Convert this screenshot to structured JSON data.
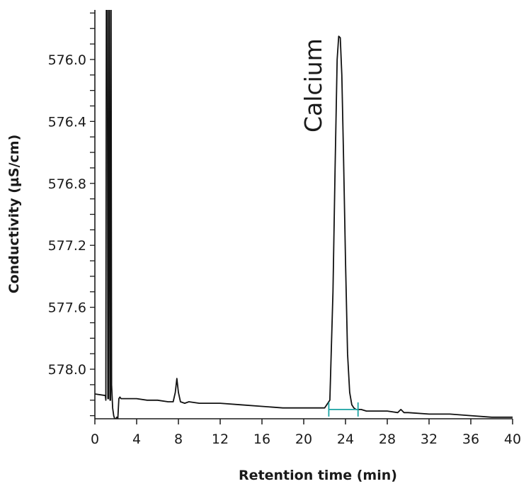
{
  "chart_data": {
    "type": "line",
    "title": "",
    "xlabel": "Retention time (min)",
    "ylabel": "Conductivity (µS/cm)",
    "xlim": [
      0,
      40
    ],
    "ylim": [
      575.68,
      578.32
    ],
    "y_inverted": true,
    "grid": false,
    "legend": "none",
    "x_ticks": [
      0,
      4,
      8,
      12,
      16,
      20,
      24,
      28,
      32,
      36,
      40
    ],
    "x_tick_labels": [
      "0",
      "4",
      "8",
      "12",
      "16",
      "20",
      "24",
      "28",
      "32",
      "36",
      "40"
    ],
    "y_ticks": [
      576.0,
      576.4,
      576.8,
      577.2,
      577.6,
      578.0
    ],
    "y_tick_labels": [
      "576.0",
      "576.4",
      "576.8",
      "577.2",
      "577.6",
      "578.0"
    ],
    "y_minor_step": 0.1,
    "line_color": "#111111",
    "series": [
      {
        "x": [
          0,
          1.0,
          1.05,
          1.1,
          1.2,
          1.25,
          1.3,
          1.35,
          1.4,
          1.45,
          1.5,
          1.55,
          1.6,
          1.7,
          1.8,
          1.9,
          2.0,
          2.1,
          2.2,
          2.3,
          2.4,
          2.5,
          2.6,
          3.0,
          4.0,
          5.0,
          6.0,
          7.0,
          7.5,
          7.7,
          7.85,
          8.0,
          8.2,
          8.6,
          9.0,
          10.0,
          12.0,
          14.0,
          16.0,
          18.0,
          20.0,
          21.0,
          22.0,
          22.5,
          22.8,
          23.0,
          23.2,
          23.35,
          23.5,
          23.65,
          23.8,
          24.0,
          24.2,
          24.4,
          24.6,
          24.8,
          25.0,
          25.5,
          26.0,
          28.0,
          29.0,
          29.3,
          29.6,
          30.0,
          32.0,
          34.0,
          36.0,
          38.0,
          40.0
        ],
        "values": [
          578.16,
          578.17,
          578.2,
          575.68,
          575.68,
          578.19,
          578.19,
          575.68,
          575.68,
          578.2,
          578.2,
          575.68,
          578.1,
          578.25,
          578.3,
          578.32,
          578.32,
          578.31,
          578.32,
          578.19,
          578.18,
          578.19,
          578.19,
          578.19,
          578.19,
          578.2,
          578.2,
          578.21,
          578.21,
          578.15,
          578.06,
          578.15,
          578.21,
          578.22,
          578.21,
          578.22,
          578.22,
          578.23,
          578.24,
          578.25,
          578.25,
          578.25,
          578.25,
          578.2,
          577.5,
          576.7,
          576.0,
          575.85,
          575.86,
          576.1,
          576.6,
          577.3,
          577.9,
          578.15,
          578.23,
          578.25,
          578.26,
          578.26,
          578.27,
          578.27,
          578.28,
          578.26,
          578.28,
          578.28,
          578.29,
          578.29,
          578.3,
          578.31,
          578.31
        ]
      }
    ],
    "annotations": [
      {
        "text": "Calcium",
        "x": 23.5,
        "rotation": -90
      }
    ],
    "integration_markers": {
      "color": "#1aa3a3",
      "x_start": 22.4,
      "x_end": 25.2,
      "y": 578.26
    }
  }
}
